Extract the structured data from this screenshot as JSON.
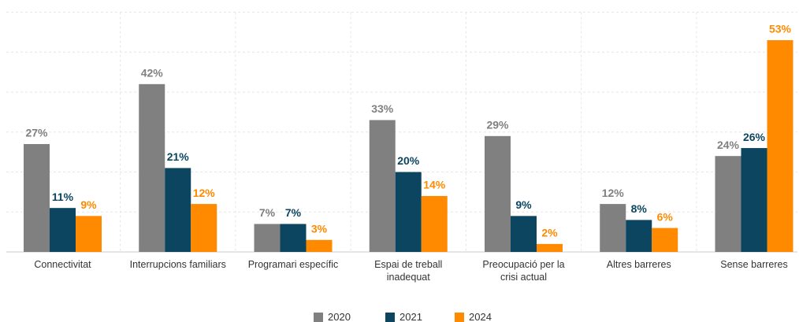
{
  "chart_data": {
    "type": "bar",
    "categories": [
      "Connectivitat",
      "Interrupcions familiars",
      "Programari específic",
      "Espai de treball\ninadequat",
      "Preocupació per la\ncrisi actual",
      "Altres barreres",
      "Sense barreres"
    ],
    "series": [
      {
        "name": "2020",
        "color": "#808080",
        "values": [
          27,
          42,
          7,
          33,
          29,
          12,
          24
        ],
        "value_labels": [
          "27%",
          "42%",
          "7%",
          "33%",
          "29%",
          "12%",
          "24%"
        ]
      },
      {
        "name": "2021",
        "color": "#0b4560",
        "values": [
          11,
          21,
          7,
          20,
          9,
          8,
          26
        ],
        "value_labels": [
          "11%",
          "21%",
          "7%",
          "20%",
          "9%",
          "8%",
          "26%"
        ]
      },
      {
        "name": "2024",
        "color": "#ff8a00",
        "values": [
          9,
          12,
          3,
          14,
          2,
          6,
          53
        ],
        "value_labels": [
          "9%",
          "12%",
          "3%",
          "14%",
          "2%",
          "6%",
          "53%"
        ]
      }
    ],
    "ylim": [
      0,
      60
    ],
    "yticks": [
      0,
      10,
      20,
      30,
      40,
      50,
      60
    ],
    "grid": true,
    "legend": "bottom"
  }
}
